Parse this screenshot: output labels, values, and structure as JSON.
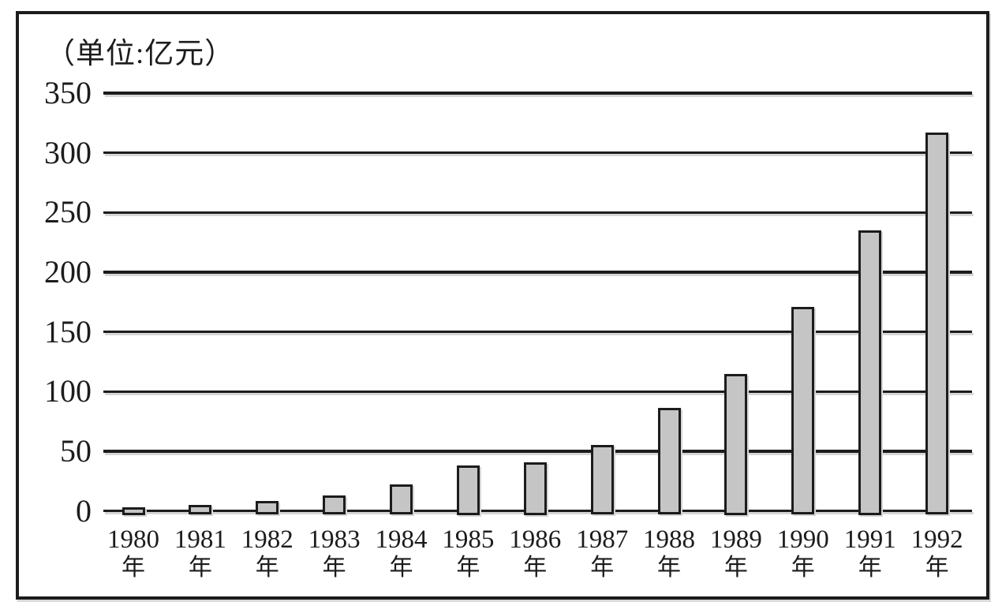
{
  "chart_data": {
    "type": "bar",
    "title": "（单位:亿元）",
    "unit": "亿元",
    "categories": [
      "1980",
      "1981",
      "1982",
      "1983",
      "1984",
      "1985",
      "1986",
      "1987",
      "1988",
      "1989",
      "1990",
      "1991",
      "1992"
    ],
    "category_suffix": "年",
    "values": [
      3,
      5,
      8,
      13,
      22,
      38,
      41,
      55,
      86,
      115,
      171,
      235,
      317
    ],
    "yticks": [
      0,
      50,
      100,
      150,
      200,
      250,
      300,
      350
    ],
    "ylim": [
      0,
      350
    ],
    "xlabel": "",
    "ylabel": "",
    "legend": "none",
    "grid": "horizontal-only",
    "colors": {
      "bar_fill": "#c5c5c5",
      "line": "#1c1c1c",
      "background": "#ffffff"
    }
  }
}
